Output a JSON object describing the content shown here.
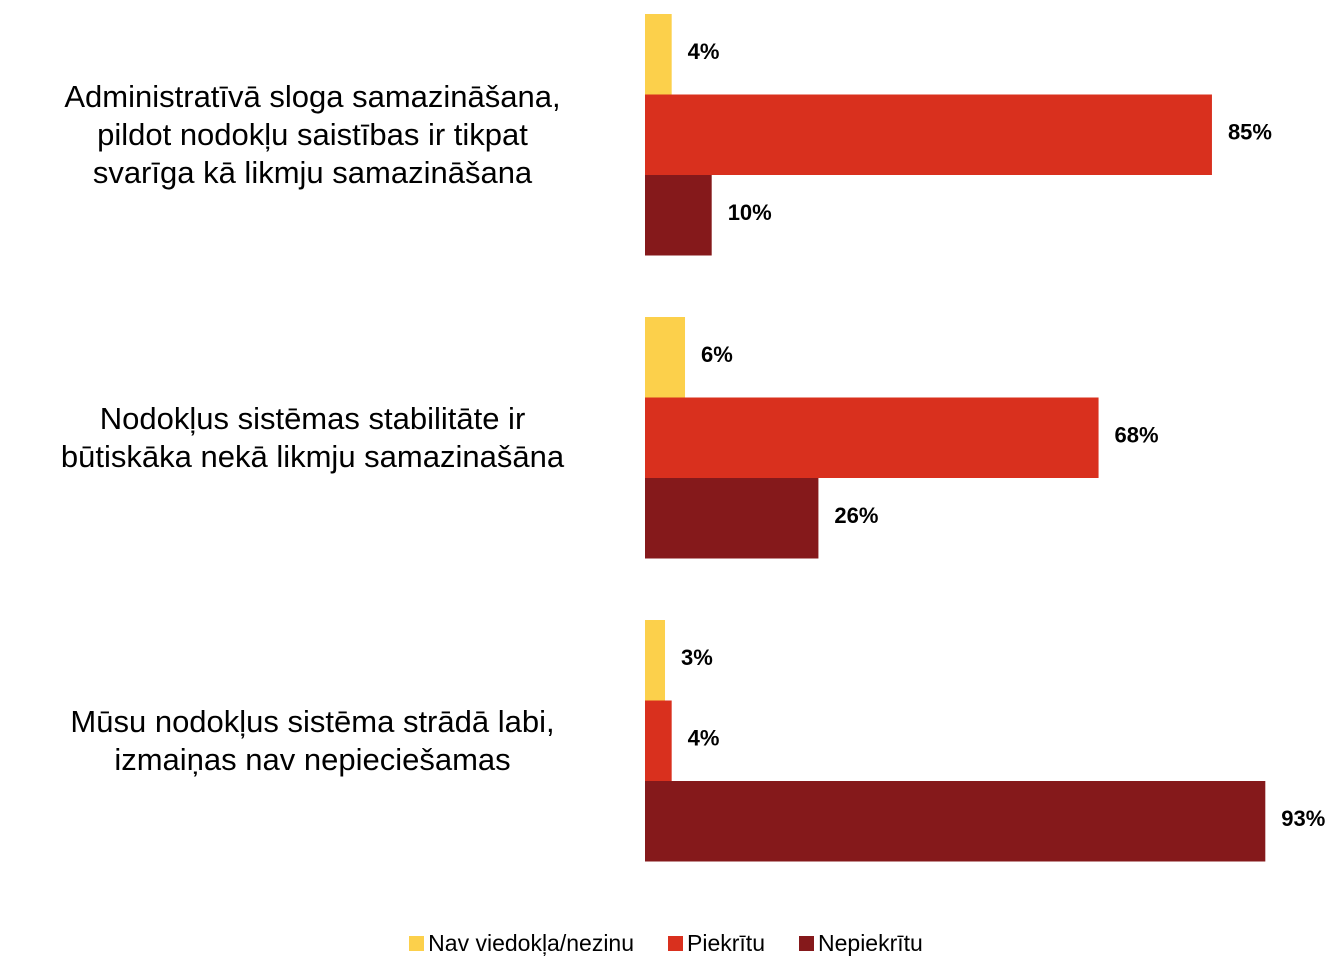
{
  "chart_data": {
    "type": "bar",
    "orientation": "horizontal",
    "categories": [
      "Administratīvā sloga samazināšana,\npildot nodokļu saistības ir tikpat\nsvarīga kā likmju samazināšana",
      "Nodokļus sistēmas stabilitāte ir\nbūtiskāka nekā likmju samazinašāna",
      "Mūsu nodokļus sistēma strādā labi,\nizmaiņas nav nepieciešamas"
    ],
    "series": [
      {
        "name": "Nav viedokļa/nezinu",
        "color": "#fcd04b",
        "values": [
          4,
          6,
          3
        ],
        "value_labels": [
          "4%",
          "6%",
          "3%"
        ]
      },
      {
        "name": "Piekrītu",
        "color": "#d9301e",
        "values": [
          85,
          68,
          4
        ],
        "value_labels": [
          "85%",
          "68%",
          "4%"
        ]
      },
      {
        "name": "Nepiekrītu",
        "color": "#85191b",
        "values": [
          10,
          26,
          93
        ],
        "value_labels": [
          "10%",
          "26%",
          "93%"
        ]
      }
    ],
    "xlim": [
      0,
      100
    ],
    "legend": "bottom"
  }
}
